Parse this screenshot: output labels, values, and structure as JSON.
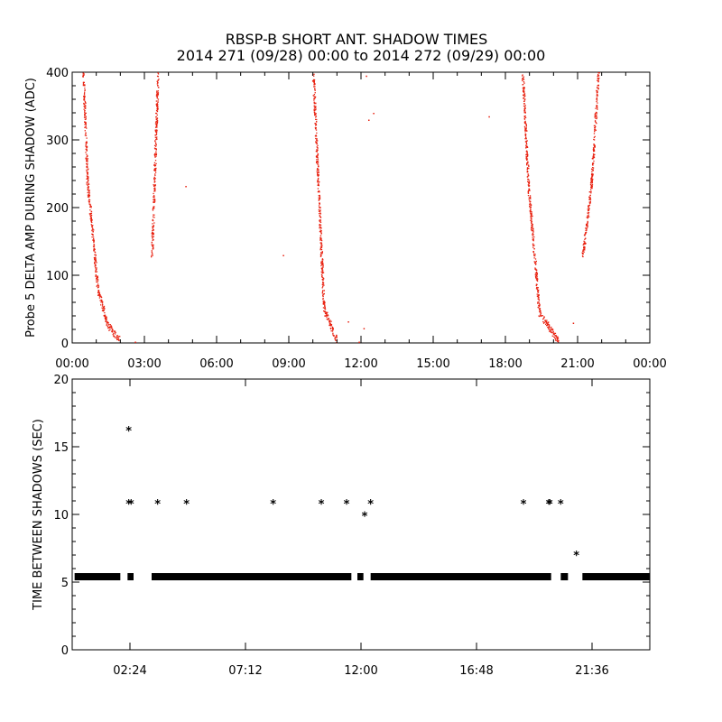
{
  "title": "RBSP-B SHORT ANT. SHADOW TIMES",
  "subtitle": "2014 271 (09/28) 00:00 to 2014 272 (09/29) 00:00",
  "colors": {
    "points_top": "#e8200f",
    "points_bottom": "#000000",
    "axes": "#000000"
  },
  "chart_data": [
    {
      "type": "scatter",
      "title": "",
      "xlabel": "",
      "ylabel": "Probe 5 DELTA AMP DURING SHADOW (ADC)",
      "x_unit": "hours",
      "xlim": [
        0,
        24
      ],
      "ylim": [
        0,
        400
      ],
      "x_ticks": [
        0,
        3,
        6,
        9,
        12,
        15,
        18,
        21,
        24
      ],
      "x_tick_labels": [
        "00:00",
        "03:00",
        "06:00",
        "09:00",
        "12:00",
        "15:00",
        "18:00",
        "21:00",
        "00:00"
      ],
      "y_ticks": [
        0,
        100,
        200,
        300,
        400
      ],
      "y_tick_labels": [
        "0",
        "100",
        "200",
        "300",
        "400"
      ],
      "segments": [
        {
          "x0": 0.45,
          "x1": 0.62,
          "y0": 400,
          "y1": 240
        },
        {
          "x0": 0.62,
          "x1": 1.05,
          "y0": 240,
          "y1": 80
        },
        {
          "x0": 1.05,
          "x1": 1.45,
          "y0": 80,
          "y1": 28
        },
        {
          "x0": 1.45,
          "x1": 1.95,
          "y0": 28,
          "y1": 5
        },
        {
          "x0": 3.3,
          "x1": 3.55,
          "y0": 130,
          "y1": 400
        },
        {
          "x0": 10.0,
          "x1": 10.2,
          "y0": 400,
          "y1": 240
        },
        {
          "x0": 10.2,
          "x1": 10.45,
          "y0": 240,
          "y1": 50
        },
        {
          "x0": 10.45,
          "x1": 11.0,
          "y0": 50,
          "y1": 3
        },
        {
          "x0": 18.7,
          "x1": 18.95,
          "y0": 400,
          "y1": 230
        },
        {
          "x0": 18.95,
          "x1": 19.4,
          "y0": 230,
          "y1": 45
        },
        {
          "x0": 19.4,
          "x1": 20.2,
          "y0": 45,
          "y1": 3
        },
        {
          "x0": 21.2,
          "x1": 21.55,
          "y0": 130,
          "y1": 230
        },
        {
          "x0": 21.55,
          "x1": 21.85,
          "y0": 230,
          "y1": 400
        }
      ],
      "isolated_points": [
        [
          4.7,
          232
        ],
        [
          8.75,
          130
        ],
        [
          12.3,
          330
        ],
        [
          12.5,
          340
        ],
        [
          12.2,
          395
        ],
        [
          11.45,
          32
        ],
        [
          12.1,
          22
        ],
        [
          17.3,
          335
        ],
        [
          2.6,
          2
        ],
        [
          20.8,
          30
        ],
        [
          11.9,
          2
        ]
      ]
    },
    {
      "type": "scatter",
      "title": "",
      "xlabel": "",
      "ylabel": "TIME BETWEEN SHADOWS (SEC)",
      "x_unit": "hours",
      "xlim": [
        0,
        24
      ],
      "ylim": [
        0,
        20
      ],
      "x_ticks": [
        2.4,
        7.2,
        12.0,
        16.8,
        21.6
      ],
      "x_tick_labels": [
        "02:24",
        "07:12",
        "12:00",
        "16:48",
        "21:36"
      ],
      "y_ticks": [
        0,
        5,
        10,
        15,
        20
      ],
      "y_tick_labels": [
        "0",
        "5",
        "10",
        "15",
        "20"
      ],
      "baseline_value": 5.4,
      "baseline_ranges": [
        [
          0.1,
          2.0
        ],
        [
          2.3,
          2.55
        ],
        [
          3.3,
          11.6
        ],
        [
          11.85,
          12.1
        ],
        [
          12.4,
          19.9
        ],
        [
          20.3,
          20.6
        ],
        [
          21.2,
          24.0
        ]
      ],
      "points": [
        [
          2.35,
          16.2
        ],
        [
          2.35,
          10.8
        ],
        [
          2.45,
          10.8
        ],
        [
          3.55,
          10.8
        ],
        [
          4.75,
          10.8
        ],
        [
          8.35,
          10.8
        ],
        [
          10.35,
          10.8
        ],
        [
          11.4,
          10.8
        ],
        [
          12.15,
          9.9
        ],
        [
          12.4,
          10.8
        ],
        [
          18.75,
          10.8
        ],
        [
          19.8,
          10.8
        ],
        [
          19.85,
          10.8
        ],
        [
          20.3,
          10.8
        ],
        [
          20.95,
          7.0
        ]
      ]
    }
  ]
}
